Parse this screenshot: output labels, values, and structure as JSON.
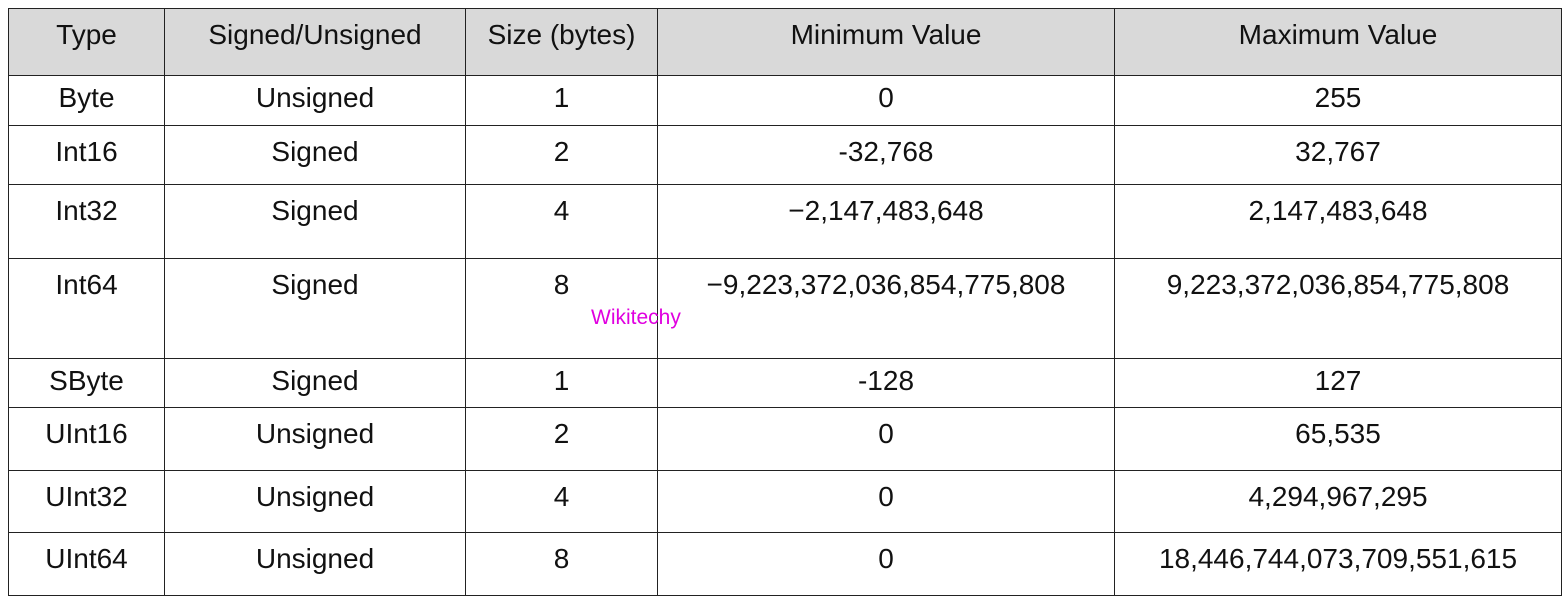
{
  "table": {
    "header": [
      "Type",
      "Signed/Unsigned",
      "Size (bytes)",
      "Minimum Value",
      "Maximum Value"
    ],
    "rows": [
      [
        "Byte",
        "Unsigned",
        "1",
        "0",
        "255"
      ],
      [
        "Int16",
        "Signed",
        "2",
        "-32,768",
        "32,767"
      ],
      [
        "Int32",
        "Signed",
        "4",
        "−2,147,483,648",
        "2,147,483,648"
      ],
      [
        "Int64",
        "Signed",
        "8",
        "−9,223,372,036,854,775,808",
        "9,223,372,036,854,775,808"
      ],
      [
        "SByte",
        "Signed",
        "1",
        "-128",
        "127"
      ],
      [
        "UInt16",
        "Unsigned",
        "2",
        "0",
        "65,535"
      ],
      [
        "UInt32",
        "Unsigned",
        "4",
        "0",
        "4,294,967,295"
      ],
      [
        "UInt64",
        "Unsigned",
        "8",
        "0",
        "18,446,744,073,709,551,615"
      ]
    ]
  },
  "watermark": "Wikitechy"
}
